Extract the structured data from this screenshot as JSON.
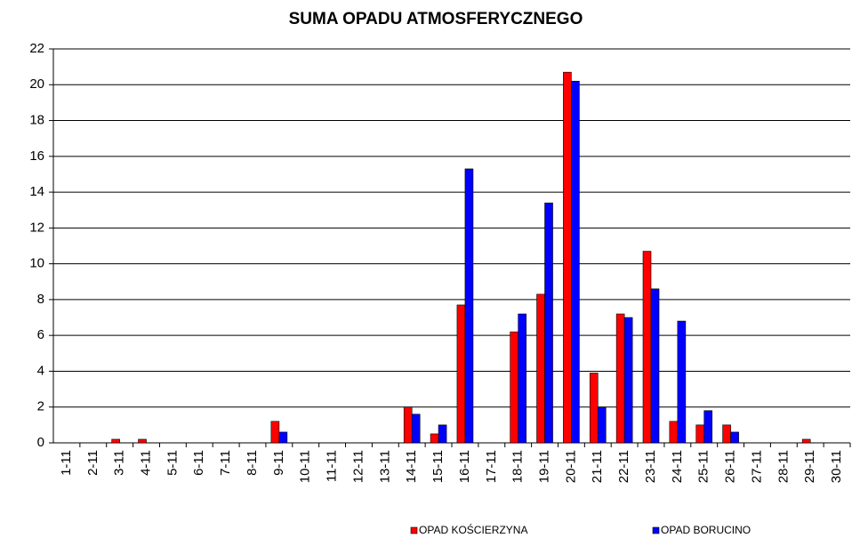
{
  "chart_data": {
    "type": "bar",
    "title": "SUMA OPADU ATMOSFERYCZNEGO",
    "categories": [
      "1-11",
      "2-11",
      "3-11",
      "4-11",
      "5-11",
      "6-11",
      "7-11",
      "8-11",
      "9-11",
      "10-11",
      "11-11",
      "12-11",
      "13-11",
      "14-11",
      "15-11",
      "16-11",
      "17-11",
      "18-11",
      "19-11",
      "20-11",
      "21-11",
      "22-11",
      "23-11",
      "24-11",
      "25-11",
      "26-11",
      "27-11",
      "28-11",
      "29-11",
      "30-11"
    ],
    "series": [
      {
        "name": "OPAD KOŚCIERZYNA",
        "color": "#ff0000",
        "values": [
          0,
          0,
          0.2,
          0.2,
          0,
          0,
          0,
          0,
          1.2,
          0,
          0,
          0,
          0,
          2.0,
          0.5,
          7.7,
          0,
          6.2,
          8.3,
          20.7,
          3.9,
          7.2,
          10.7,
          1.2,
          1.0,
          1.0,
          0,
          0,
          0.2,
          0
        ]
      },
      {
        "name": "OPAD BORUCINO",
        "color": "#0000ff",
        "values": [
          0,
          0,
          0,
          0,
          0,
          0,
          0,
          0,
          0.6,
          0,
          0,
          0,
          0,
          1.6,
          1.0,
          15.3,
          0,
          7.2,
          13.4,
          20.2,
          2.0,
          7.0,
          8.6,
          6.8,
          1.8,
          0.6,
          0,
          0,
          0,
          0
        ]
      }
    ],
    "ylim": [
      0,
      22
    ],
    "yticks": [
      0,
      2,
      4,
      6,
      8,
      10,
      12,
      14,
      16,
      18,
      20,
      22
    ],
    "grid": true
  }
}
